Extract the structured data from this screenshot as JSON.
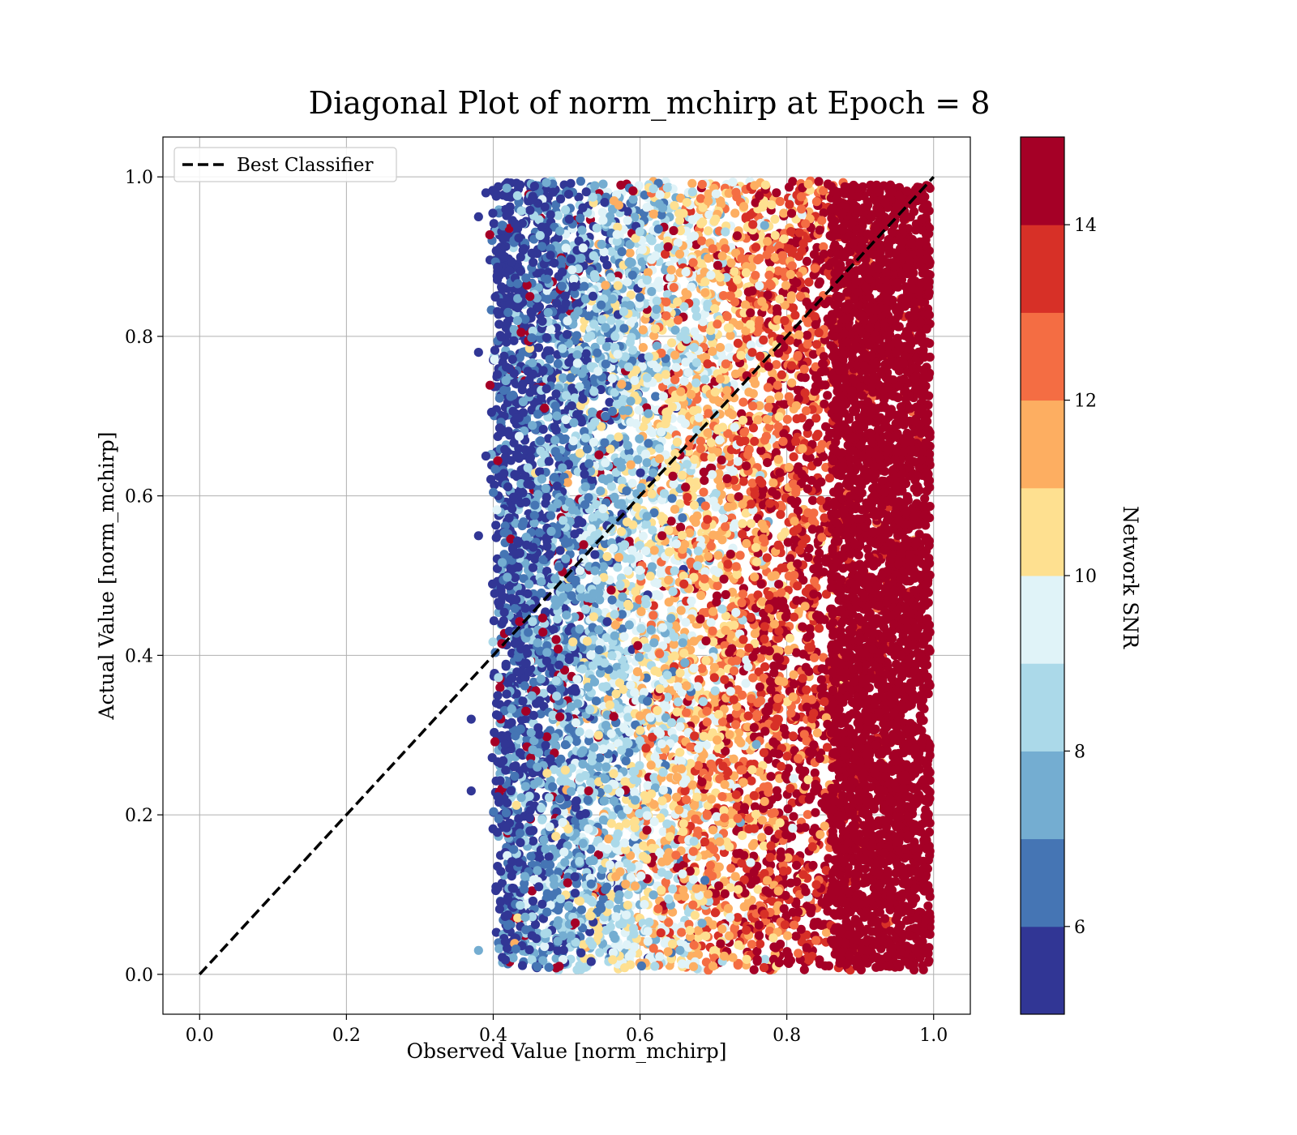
{
  "chart_data": {
    "type": "scatter",
    "title": "Diagonal Plot of norm_mchirp at Epoch = 8",
    "xlabel": "Observed Value [norm_mchirp]",
    "ylabel": "Actual Value [norm_mchirp]",
    "xlim": [
      -0.05,
      1.05
    ],
    "ylim": [
      -0.05,
      1.05
    ],
    "x_ticks": [
      0.0,
      0.2,
      0.4,
      0.6,
      0.8,
      1.0
    ],
    "y_ticks": [
      0.0,
      0.2,
      0.4,
      0.6,
      0.8,
      1.0
    ],
    "x_tick_labels": [
      "0.0",
      "0.2",
      "0.4",
      "0.6",
      "0.8",
      "1.0"
    ],
    "y_tick_labels": [
      "0.0",
      "0.2",
      "0.4",
      "0.6",
      "0.8",
      "1.0"
    ],
    "grid": true,
    "legend": {
      "placement": "upper-left",
      "entries": [
        "Best Classifier"
      ]
    },
    "reference_line": {
      "name": "Best Classifier",
      "style": "dashed",
      "color": "#000000",
      "x": [
        0.0,
        1.0
      ],
      "y": [
        0.0,
        1.0
      ]
    },
    "colorbar": {
      "label": "Network SNR",
      "range": [
        5,
        15
      ],
      "tick_values": [
        6,
        8,
        10,
        12,
        14
      ],
      "tick_labels": [
        "6",
        "8",
        "10",
        "12",
        "14"
      ],
      "boundaries": [
        5,
        6,
        7,
        8,
        9,
        10,
        11,
        12,
        13,
        14,
        15
      ],
      "colors": [
        "#313695",
        "#4575b4",
        "#74add1",
        "#abd9e9",
        "#e0f3f8",
        "#fee090",
        "#fdae61",
        "#f46d43",
        "#d73027",
        "#a50026"
      ]
    },
    "scatter_summary": {
      "x_range": [
        0.37,
        1.0
      ],
      "y_range": [
        0.0,
        1.0
      ],
      "trend": "Network SNR increases with observed value",
      "points": [
        {
          "x": 0.38,
          "y": 0.78,
          "c": 5.5
        },
        {
          "x": 0.39,
          "y": 0.98,
          "c": 5.5
        },
        {
          "x": 0.38,
          "y": 0.95,
          "c": 5.5
        },
        {
          "x": 0.37,
          "y": 0.32,
          "c": 5.5
        },
        {
          "x": 0.37,
          "y": 0.23,
          "c": 5.5
        },
        {
          "x": 0.38,
          "y": 0.55,
          "c": 5.5
        },
        {
          "x": 0.38,
          "y": 0.03,
          "c": 7.5
        },
        {
          "x": 0.39,
          "y": 0.65,
          "c": 5.5
        },
        {
          "x": 0.45,
          "y": 0.85,
          "c": 14.5
        },
        {
          "x": 0.47,
          "y": 0.71,
          "c": 14.5
        },
        {
          "x": 0.49,
          "y": 0.01,
          "c": 14.5
        },
        {
          "x": 0.94,
          "y": 0.01,
          "c": 14.5
        },
        {
          "x": 0.53,
          "y": 0.23,
          "c": 14.5
        },
        {
          "x": 0.63,
          "y": 0.55,
          "c": 14.5
        }
      ]
    }
  }
}
